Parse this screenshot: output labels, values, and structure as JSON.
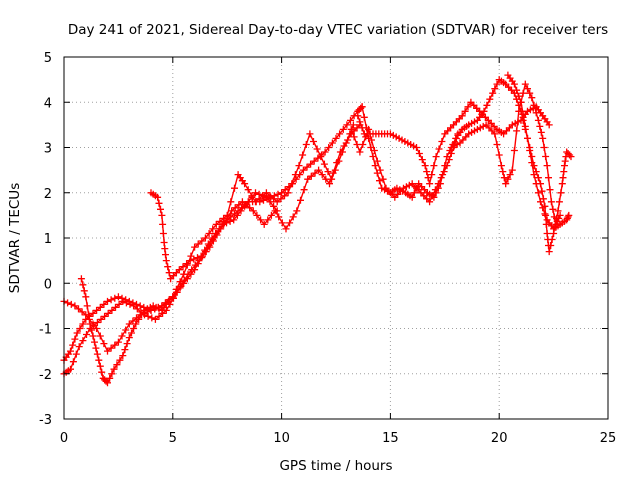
{
  "chart_data": {
    "type": "scatter",
    "title": "Day 241 of 2021, Sidereal Day-to-day VTEC variation (SDTVAR) for receiver ters",
    "xlabel": "GPS time / hours",
    "ylabel": "SDTVAR / TECUs",
    "xlim": [
      0,
      25
    ],
    "ylim": [
      -3,
      5
    ],
    "xticks": [
      0,
      5,
      10,
      15,
      20,
      25
    ],
    "yticks": [
      -3,
      -2,
      -1,
      0,
      1,
      2,
      3,
      4,
      5
    ],
    "grid": true,
    "marker": "plus",
    "color": "#ff0000",
    "series": [
      {
        "name": "trace-1",
        "points": [
          [
            0.0,
            -1.7
          ],
          [
            0.3,
            -1.5
          ],
          [
            0.6,
            -1.1
          ],
          [
            1.0,
            -0.8
          ],
          [
            1.5,
            -0.6
          ],
          [
            2.0,
            -0.4
          ],
          [
            2.5,
            -0.3
          ],
          [
            3.0,
            -0.4
          ],
          [
            3.5,
            -0.5
          ],
          [
            4.0,
            -0.6
          ],
          [
            4.5,
            -0.5
          ],
          [
            5.0,
            -0.3
          ],
          [
            5.5,
            0.0
          ],
          [
            6.0,
            0.3
          ],
          [
            6.5,
            0.7
          ],
          [
            7.0,
            1.1
          ],
          [
            7.5,
            1.4
          ],
          [
            8.0,
            1.6
          ],
          [
            8.5,
            1.8
          ],
          [
            9.0,
            1.8
          ],
          [
            9.5,
            1.9
          ],
          [
            10.0,
            2.0
          ],
          [
            10.5,
            2.2
          ],
          [
            11.0,
            2.5
          ],
          [
            11.5,
            2.7
          ],
          [
            12.0,
            2.9
          ],
          [
            12.5,
            3.2
          ],
          [
            13.0,
            3.5
          ],
          [
            13.5,
            3.8
          ],
          [
            13.7,
            3.9
          ]
        ]
      },
      {
        "name": "trace-2",
        "points": [
          [
            0.0,
            -2.0
          ],
          [
            0.3,
            -1.9
          ],
          [
            0.7,
            -1.4
          ],
          [
            1.2,
            -1.0
          ],
          [
            1.7,
            -0.8
          ],
          [
            2.2,
            -0.6
          ],
          [
            2.7,
            -0.4
          ],
          [
            3.2,
            -0.5
          ],
          [
            3.7,
            -0.7
          ],
          [
            4.2,
            -0.8
          ],
          [
            4.7,
            -0.6
          ],
          [
            5.2,
            -0.2
          ],
          [
            5.7,
            0.2
          ],
          [
            6.2,
            0.5
          ],
          [
            6.7,
            0.8
          ],
          [
            7.2,
            1.2
          ],
          [
            7.7,
            1.6
          ],
          [
            8.2,
            1.8
          ],
          [
            8.7,
            1.6
          ],
          [
            9.2,
            1.3
          ],
          [
            9.7,
            1.6
          ],
          [
            10.2,
            1.2
          ],
          [
            10.7,
            1.6
          ],
          [
            11.2,
            2.3
          ],
          [
            11.7,
            2.5
          ],
          [
            12.2,
            2.2
          ],
          [
            12.7,
            2.9
          ],
          [
            13.2,
            3.3
          ],
          [
            13.6,
            3.5
          ]
        ]
      },
      {
        "name": "trace-3",
        "points": [
          [
            0.0,
            -0.4
          ],
          [
            0.5,
            -0.5
          ],
          [
            1.0,
            -0.7
          ],
          [
            1.5,
            -1.0
          ],
          [
            2.0,
            -1.5
          ],
          [
            2.5,
            -1.3
          ],
          [
            3.0,
            -0.9
          ],
          [
            3.5,
            -0.7
          ],
          [
            4.0,
            -0.6
          ],
          [
            4.5,
            -0.5
          ],
          [
            5.0,
            -0.3
          ],
          [
            5.5,
            0.2
          ],
          [
            6.0,
            0.8
          ],
          [
            6.5,
            1.0
          ],
          [
            7.0,
            1.3
          ],
          [
            7.5,
            1.5
          ],
          [
            8.0,
            2.4
          ],
          [
            8.3,
            2.2
          ],
          [
            8.8,
            1.8
          ],
          [
            9.3,
            2.0
          ],
          [
            9.8,
            1.8
          ],
          [
            10.3,
            2.0
          ],
          [
            10.8,
            2.6
          ],
          [
            11.3,
            3.3
          ],
          [
            11.8,
            2.8
          ],
          [
            12.3,
            2.3
          ],
          [
            12.8,
            2.9
          ],
          [
            13.3,
            3.5
          ]
        ]
      },
      {
        "name": "trace-4",
        "points": [
          [
            4.0,
            2.0
          ],
          [
            4.3,
            1.9
          ],
          [
            4.5,
            1.5
          ],
          [
            4.6,
            0.9
          ],
          [
            4.7,
            0.5
          ],
          [
            4.9,
            0.1
          ],
          [
            5.3,
            0.3
          ],
          [
            5.8,
            0.5
          ],
          [
            6.3,
            0.6
          ],
          [
            6.8,
            1.0
          ],
          [
            7.3,
            1.3
          ],
          [
            7.8,
            1.4
          ],
          [
            8.3,
            1.7
          ],
          [
            8.8,
            2.0
          ],
          [
            9.3,
            1.9
          ],
          [
            9.8,
            1.6
          ]
        ]
      },
      {
        "name": "trace-5",
        "points": [
          [
            0.8,
            0.1
          ],
          [
            1.0,
            -0.3
          ],
          [
            1.2,
            -0.9
          ],
          [
            1.4,
            -1.3
          ],
          [
            1.6,
            -1.7
          ],
          [
            1.8,
            -2.1
          ],
          [
            2.0,
            -2.2
          ],
          [
            2.3,
            -1.9
          ],
          [
            2.7,
            -1.6
          ],
          [
            3.0,
            -1.2
          ],
          [
            3.3,
            -0.9
          ],
          [
            3.7,
            -0.6
          ],
          [
            4.1,
            -0.5
          ],
          [
            4.5,
            -0.6
          ],
          [
            4.8,
            -0.4
          ]
        ]
      },
      {
        "name": "trace-6",
        "points": [
          [
            13.7,
            3.9
          ],
          [
            14.0,
            3.2
          ],
          [
            14.3,
            2.6
          ],
          [
            14.6,
            2.1
          ],
          [
            15.0,
            2.0
          ],
          [
            15.3,
            2.1
          ],
          [
            15.7,
            2.0
          ],
          [
            16.0,
            1.9
          ],
          [
            16.3,
            2.2
          ],
          [
            16.7,
            2.0
          ],
          [
            17.0,
            1.9
          ],
          [
            17.3,
            2.2
          ],
          [
            17.6,
            2.8
          ],
          [
            18.0,
            3.2
          ],
          [
            18.3,
            3.4
          ],
          [
            18.6,
            3.5
          ],
          [
            19.0,
            3.6
          ],
          [
            19.3,
            3.8
          ],
          [
            19.7,
            4.2
          ],
          [
            20.0,
            4.5
          ],
          [
            20.3,
            4.4
          ],
          [
            20.7,
            4.2
          ],
          [
            21.0,
            3.8
          ],
          [
            21.3,
            3.2
          ],
          [
            21.6,
            2.4
          ],
          [
            21.9,
            1.8
          ],
          [
            22.2,
            1.4
          ],
          [
            22.5,
            1.2
          ],
          [
            22.8,
            1.3
          ],
          [
            23.1,
            1.4
          ],
          [
            23.2,
            1.5
          ]
        ]
      },
      {
        "name": "trace-7",
        "points": [
          [
            13.5,
            3.7
          ],
          [
            13.8,
            3.3
          ],
          [
            14.2,
            3.3
          ],
          [
            14.6,
            3.3
          ],
          [
            15.0,
            3.3
          ],
          [
            15.4,
            3.2
          ],
          [
            15.8,
            3.1
          ],
          [
            16.2,
            3.0
          ],
          [
            16.6,
            2.6
          ],
          [
            16.8,
            2.2
          ],
          [
            17.1,
            2.8
          ],
          [
            17.5,
            3.3
          ],
          [
            17.9,
            3.5
          ],
          [
            18.3,
            3.7
          ],
          [
            18.7,
            4.0
          ],
          [
            19.1,
            3.8
          ],
          [
            19.5,
            3.6
          ],
          [
            19.9,
            3.4
          ],
          [
            20.2,
            3.3
          ],
          [
            20.6,
            3.5
          ],
          [
            21.0,
            3.6
          ],
          [
            21.3,
            3.8
          ],
          [
            21.7,
            3.9
          ],
          [
            22.0,
            3.7
          ],
          [
            22.3,
            3.5
          ]
        ]
      },
      {
        "name": "trace-8",
        "points": [
          [
            17.8,
            3.0
          ],
          [
            18.2,
            3.1
          ],
          [
            18.6,
            3.3
          ],
          [
            19.0,
            3.4
          ],
          [
            19.4,
            3.5
          ],
          [
            19.8,
            3.3
          ],
          [
            20.1,
            2.6
          ],
          [
            20.3,
            2.2
          ],
          [
            20.6,
            2.5
          ],
          [
            20.9,
            3.8
          ],
          [
            21.2,
            4.4
          ],
          [
            21.5,
            4.1
          ],
          [
            21.8,
            3.6
          ],
          [
            22.0,
            3.2
          ],
          [
            22.2,
            2.6
          ],
          [
            22.4,
            1.8
          ],
          [
            22.6,
            1.3
          ],
          [
            22.8,
            1.5
          ]
        ]
      },
      {
        "name": "trace-9",
        "points": [
          [
            13.2,
            3.4
          ],
          [
            13.6,
            2.9
          ],
          [
            14.0,
            3.4
          ],
          [
            14.4,
            2.7
          ],
          [
            14.8,
            2.1
          ],
          [
            15.2,
            1.9
          ],
          [
            15.6,
            2.1
          ],
          [
            16.0,
            2.2
          ],
          [
            16.4,
            2.0
          ],
          [
            16.8,
            1.8
          ],
          [
            17.2,
            2.2
          ],
          [
            17.6,
            2.6
          ],
          [
            17.9,
            3.0
          ],
          [
            18.1,
            3.3
          ]
        ]
      },
      {
        "name": "trace-10",
        "points": [
          [
            20.4,
            4.6
          ],
          [
            20.7,
            4.4
          ],
          [
            21.0,
            4.0
          ],
          [
            21.3,
            3.2
          ],
          [
            21.6,
            2.6
          ],
          [
            21.9,
            2.2
          ],
          [
            22.1,
            1.7
          ],
          [
            22.2,
            1.1
          ],
          [
            22.3,
            0.7
          ],
          [
            22.5,
            1.1
          ],
          [
            22.7,
            1.6
          ],
          [
            22.9,
            2.2
          ],
          [
            23.0,
            2.6
          ],
          [
            23.1,
            2.9
          ],
          [
            23.3,
            2.8
          ]
        ]
      }
    ]
  }
}
